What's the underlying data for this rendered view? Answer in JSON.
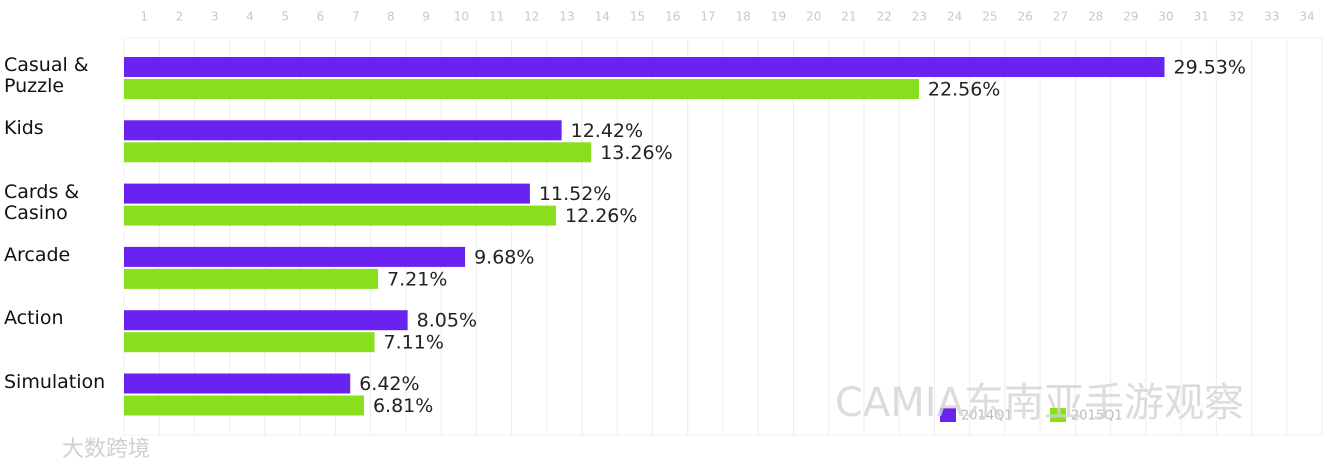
{
  "chart_data": {
    "type": "bar",
    "orientation": "horizontal",
    "categories": [
      "Casual & Puzzle",
      "Kids",
      "Cards & Casino",
      "Arcade",
      "Action",
      "Simulation"
    ],
    "series": [
      {
        "name": "2014Q1",
        "color": "#6a22f0",
        "values": [
          29.53,
          12.42,
          11.52,
          9.68,
          8.05,
          6.42
        ],
        "value_labels": [
          "29.53%",
          "12.42%",
          "11.52%",
          "9.68%",
          "8.05%",
          "6.42%"
        ]
      },
      {
        "name": "2015Q1",
        "color": "#88e01c",
        "values": [
          22.56,
          13.26,
          12.26,
          7.21,
          7.11,
          6.81
        ],
        "value_labels": [
          "22.56%",
          "13.26%",
          "12.26%",
          "7.21%",
          "7.11%",
          "6.81%"
        ]
      }
    ],
    "xlim": [
      0,
      34
    ],
    "xticks": [
      1,
      2,
      3,
      4,
      5,
      6,
      7,
      8,
      9,
      10,
      11,
      12,
      13,
      14,
      15,
      16,
      17,
      18,
      19,
      20,
      21,
      22,
      23,
      24,
      25,
      26,
      27,
      28,
      29,
      30,
      31,
      32,
      33,
      34
    ],
    "grid": true,
    "watermarks": [
      "CAMIA东南亚手游观察",
      "大数跨境"
    ]
  }
}
